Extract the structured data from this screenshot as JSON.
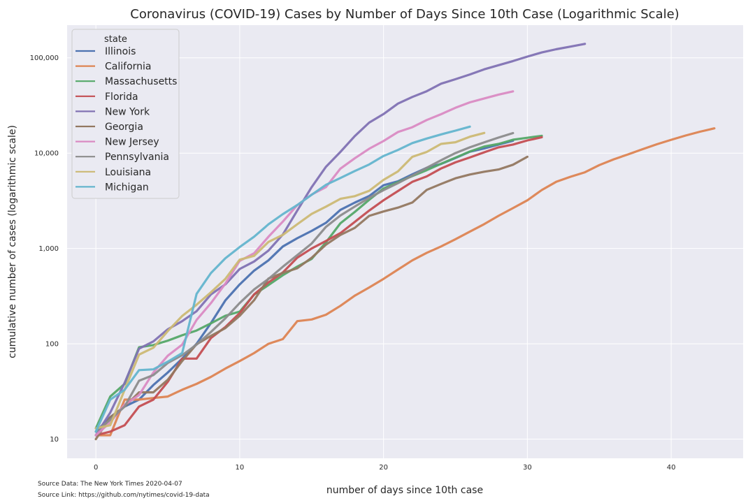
{
  "chart_data": {
    "type": "line",
    "title": "Coronavirus (COVID-19) Cases by Number of Days Since 10th Case (Logarithmic Scale)",
    "xlabel": "number of days since 10th case",
    "ylabel": "cumulative number of cases (logarithmic scale)",
    "xlim": [
      -2,
      45
    ],
    "ylim": [
      6.3,
      220000
    ],
    "yscale": "log",
    "xticks": [
      0,
      10,
      20,
      30,
      40
    ],
    "xtick_labels": [
      "0",
      "10",
      "20",
      "30",
      "40"
    ],
    "yticks": [
      10,
      100,
      1000,
      10000,
      100000
    ],
    "ytick_labels": [
      "10",
      "100",
      "1,000",
      "10,000",
      "100,000"
    ],
    "grid": true,
    "legend": {
      "title": "state",
      "position": "top-left"
    },
    "series": [
      {
        "name": "Illinois",
        "color": "#4c72b0",
        "x": [
          0,
          1,
          2,
          3,
          4,
          5,
          6,
          7,
          8,
          9,
          10,
          11,
          12,
          13,
          14,
          15,
          16,
          17,
          18,
          19,
          20,
          21,
          22,
          23,
          24,
          25,
          26,
          27,
          28,
          29
        ],
        "y": [
          12,
          17,
          22,
          26,
          37,
          50,
          70,
          100,
          165,
          285,
          420,
          585,
          750,
          1050,
          1280,
          1530,
          1860,
          2540,
          3030,
          3550,
          4600,
          5060,
          5990,
          7020,
          7700,
          8900,
          10350,
          11200,
          12300,
          13500
        ]
      },
      {
        "name": "California",
        "color": "#dd8452",
        "x": [
          0,
          1,
          2,
          3,
          4,
          5,
          6,
          7,
          8,
          9,
          10,
          11,
          12,
          13,
          14,
          15,
          16,
          17,
          18,
          19,
          20,
          21,
          22,
          23,
          24,
          25,
          26,
          27,
          28,
          29,
          30,
          31,
          32,
          33,
          34,
          35,
          36,
          37,
          38,
          39,
          40,
          41,
          42,
          43
        ],
        "y": [
          11,
          11,
          26,
          26,
          27,
          28,
          33,
          38,
          45,
          55,
          66,
          80,
          100,
          112,
          173,
          180,
          202,
          250,
          320,
          390,
          480,
          600,
          750,
          900,
          1050,
          1250,
          1500,
          1800,
          2200,
          2650,
          3200,
          4100,
          5000,
          5650,
          6300,
          7500,
          8600,
          9700,
          11000,
          12400,
          13800,
          15300,
          16800,
          18200
        ]
      },
      {
        "name": "Massachusetts",
        "color": "#55a868",
        "x": [
          0,
          1,
          2,
          3,
          4,
          5,
          6,
          7,
          8,
          9,
          10,
          11,
          12,
          13,
          14,
          15,
          16,
          17,
          18,
          19,
          20,
          21,
          22,
          23,
          24,
          25,
          26,
          27,
          28,
          29,
          30,
          31
        ],
        "y": [
          13,
          28,
          38,
          92,
          97,
          108,
          123,
          138,
          164,
          197,
          218,
          328,
          413,
          525,
          646,
          777,
          1159,
          1838,
          2417,
          3240,
          4257,
          4955,
          5752,
          6620,
          7738,
          8966,
          10402,
          11736,
          12500,
          13837,
          14500,
          15202
        ]
      },
      {
        "name": "Florida",
        "color": "#c44e52",
        "x": [
          0,
          1,
          2,
          3,
          4,
          5,
          6,
          7,
          8,
          9,
          10,
          11,
          12,
          13,
          14,
          15,
          16,
          17,
          18,
          19,
          20,
          21,
          22,
          23,
          24,
          25,
          26,
          27,
          28,
          29,
          30,
          31
        ],
        "y": [
          11,
          12,
          14,
          22,
          26,
          40,
          70,
          70,
          115,
          150,
          210,
          330,
          440,
          560,
          800,
          1000,
          1200,
          1450,
          1900,
          2500,
          3200,
          4000,
          5000,
          5700,
          6900,
          8000,
          9000,
          10200,
          11500,
          12300,
          13600,
          14700
        ]
      },
      {
        "name": "New York",
        "color": "#8172b3",
        "x": [
          0,
          1,
          2,
          3,
          4,
          5,
          6,
          7,
          8,
          9,
          10,
          11,
          12,
          13,
          14,
          15,
          16,
          17,
          18,
          19,
          20,
          21,
          22,
          23,
          24,
          25,
          26,
          27,
          28,
          29,
          30,
          31,
          32,
          33,
          34
        ],
        "y": [
          11,
          19,
          39,
          89,
          106,
          142,
          173,
          220,
          330,
          420,
          610,
          730,
          950,
          1400,
          2500,
          4400,
          7200,
          10300,
          15100,
          20900,
          25700,
          33100,
          38800,
          44600,
          53500,
          59600,
          66800,
          75800,
          83700,
          92400,
          102900,
          113700,
          123000,
          131000,
          140000
        ]
      },
      {
        "name": "Georgia",
        "color": "#937860",
        "x": [
          0,
          1,
          2,
          3,
          4,
          5,
          6,
          7,
          8,
          9,
          10,
          11,
          12,
          13,
          14,
          15,
          16,
          17,
          18,
          19,
          20,
          21,
          22,
          23,
          24,
          25,
          26,
          27,
          28,
          29,
          30
        ],
        "y": [
          10,
          17,
          22,
          31,
          31,
          42,
          66,
          99,
          121,
          146,
          197,
          287,
          484,
          555,
          620,
          800,
          1097,
          1387,
          1643,
          2198,
          2446,
          2683,
          3032,
          4117,
          4748,
          5444,
          5967,
          6383,
          6742,
          7558,
          9156
        ]
      },
      {
        "name": "New Jersey",
        "color": "#da8bc3",
        "x": [
          0,
          1,
          2,
          3,
          4,
          5,
          6,
          7,
          8,
          9,
          10,
          11,
          12,
          13,
          14,
          15,
          16,
          17,
          18,
          19,
          20,
          21,
          22,
          23,
          24,
          25,
          26,
          27,
          28,
          29
        ],
        "y": [
          11,
          15,
          23,
          29,
          50,
          75,
          98,
          178,
          267,
          427,
          742,
          890,
          1327,
          1914,
          2844,
          3675,
          4402,
          6876,
          8825,
          11124,
          13386,
          16636,
          18696,
          22255,
          25590,
          29895,
          34124,
          37505,
          41090,
          44416
        ]
      },
      {
        "name": "Pennsylvania",
        "color": "#8c8c8c",
        "x": [
          0,
          1,
          2,
          3,
          4,
          5,
          6,
          7,
          8,
          9,
          10,
          11,
          12,
          13,
          14,
          15,
          16,
          17,
          18,
          19,
          20,
          21,
          22,
          23,
          24,
          25,
          26,
          27,
          28,
          29
        ],
        "y": [
          12,
          16,
          22,
          41,
          47,
          63,
          76,
          98,
          133,
          185,
          268,
          372,
          479,
          644,
          851,
          1127,
          1687,
          2218,
          2751,
          3394,
          4087,
          4843,
          5805,
          7016,
          8420,
          10017,
          11510,
          12980,
          14559,
          16239
        ]
      },
      {
        "name": "Louisiana",
        "color": "#ccb974",
        "x": [
          0,
          1,
          2,
          3,
          4,
          5,
          6,
          7,
          8,
          9,
          10,
          11,
          12,
          13,
          14,
          15,
          16,
          17,
          18,
          19,
          20,
          21,
          22,
          23,
          24,
          25,
          26,
          27
        ],
        "y": [
          13,
          14,
          33,
          77,
          91,
          136,
          196,
          257,
          347,
          479,
          763,
          837,
          1172,
          1388,
          1795,
          2305,
          2746,
          3315,
          3540,
          4025,
          5237,
          6424,
          9150,
          10297,
          12496,
          13010,
          14867,
          16284
        ]
      },
      {
        "name": "Michigan",
        "color": "#64b5cd",
        "x": [
          0,
          1,
          2,
          3,
          4,
          5,
          6,
          7,
          8,
          9,
          10,
          11,
          12,
          13,
          14,
          15,
          16,
          17,
          18,
          19,
          20,
          21,
          22,
          23,
          24,
          25,
          26
        ],
        "y": [
          12,
          26,
          33,
          53,
          54,
          65,
          80,
          334,
          552,
          788,
          1035,
          1329,
          1791,
          2294,
          2856,
          3657,
          4650,
          5486,
          6498,
          7615,
          9334,
          10791,
          12744,
          14225,
          15718,
          17221,
          18970
        ]
      }
    ]
  },
  "footer": {
    "source_data": "Source Data: The New York Times 2020-04-07",
    "source_link": "Source Link: https://github.com/nytimes/covid-19-data"
  }
}
